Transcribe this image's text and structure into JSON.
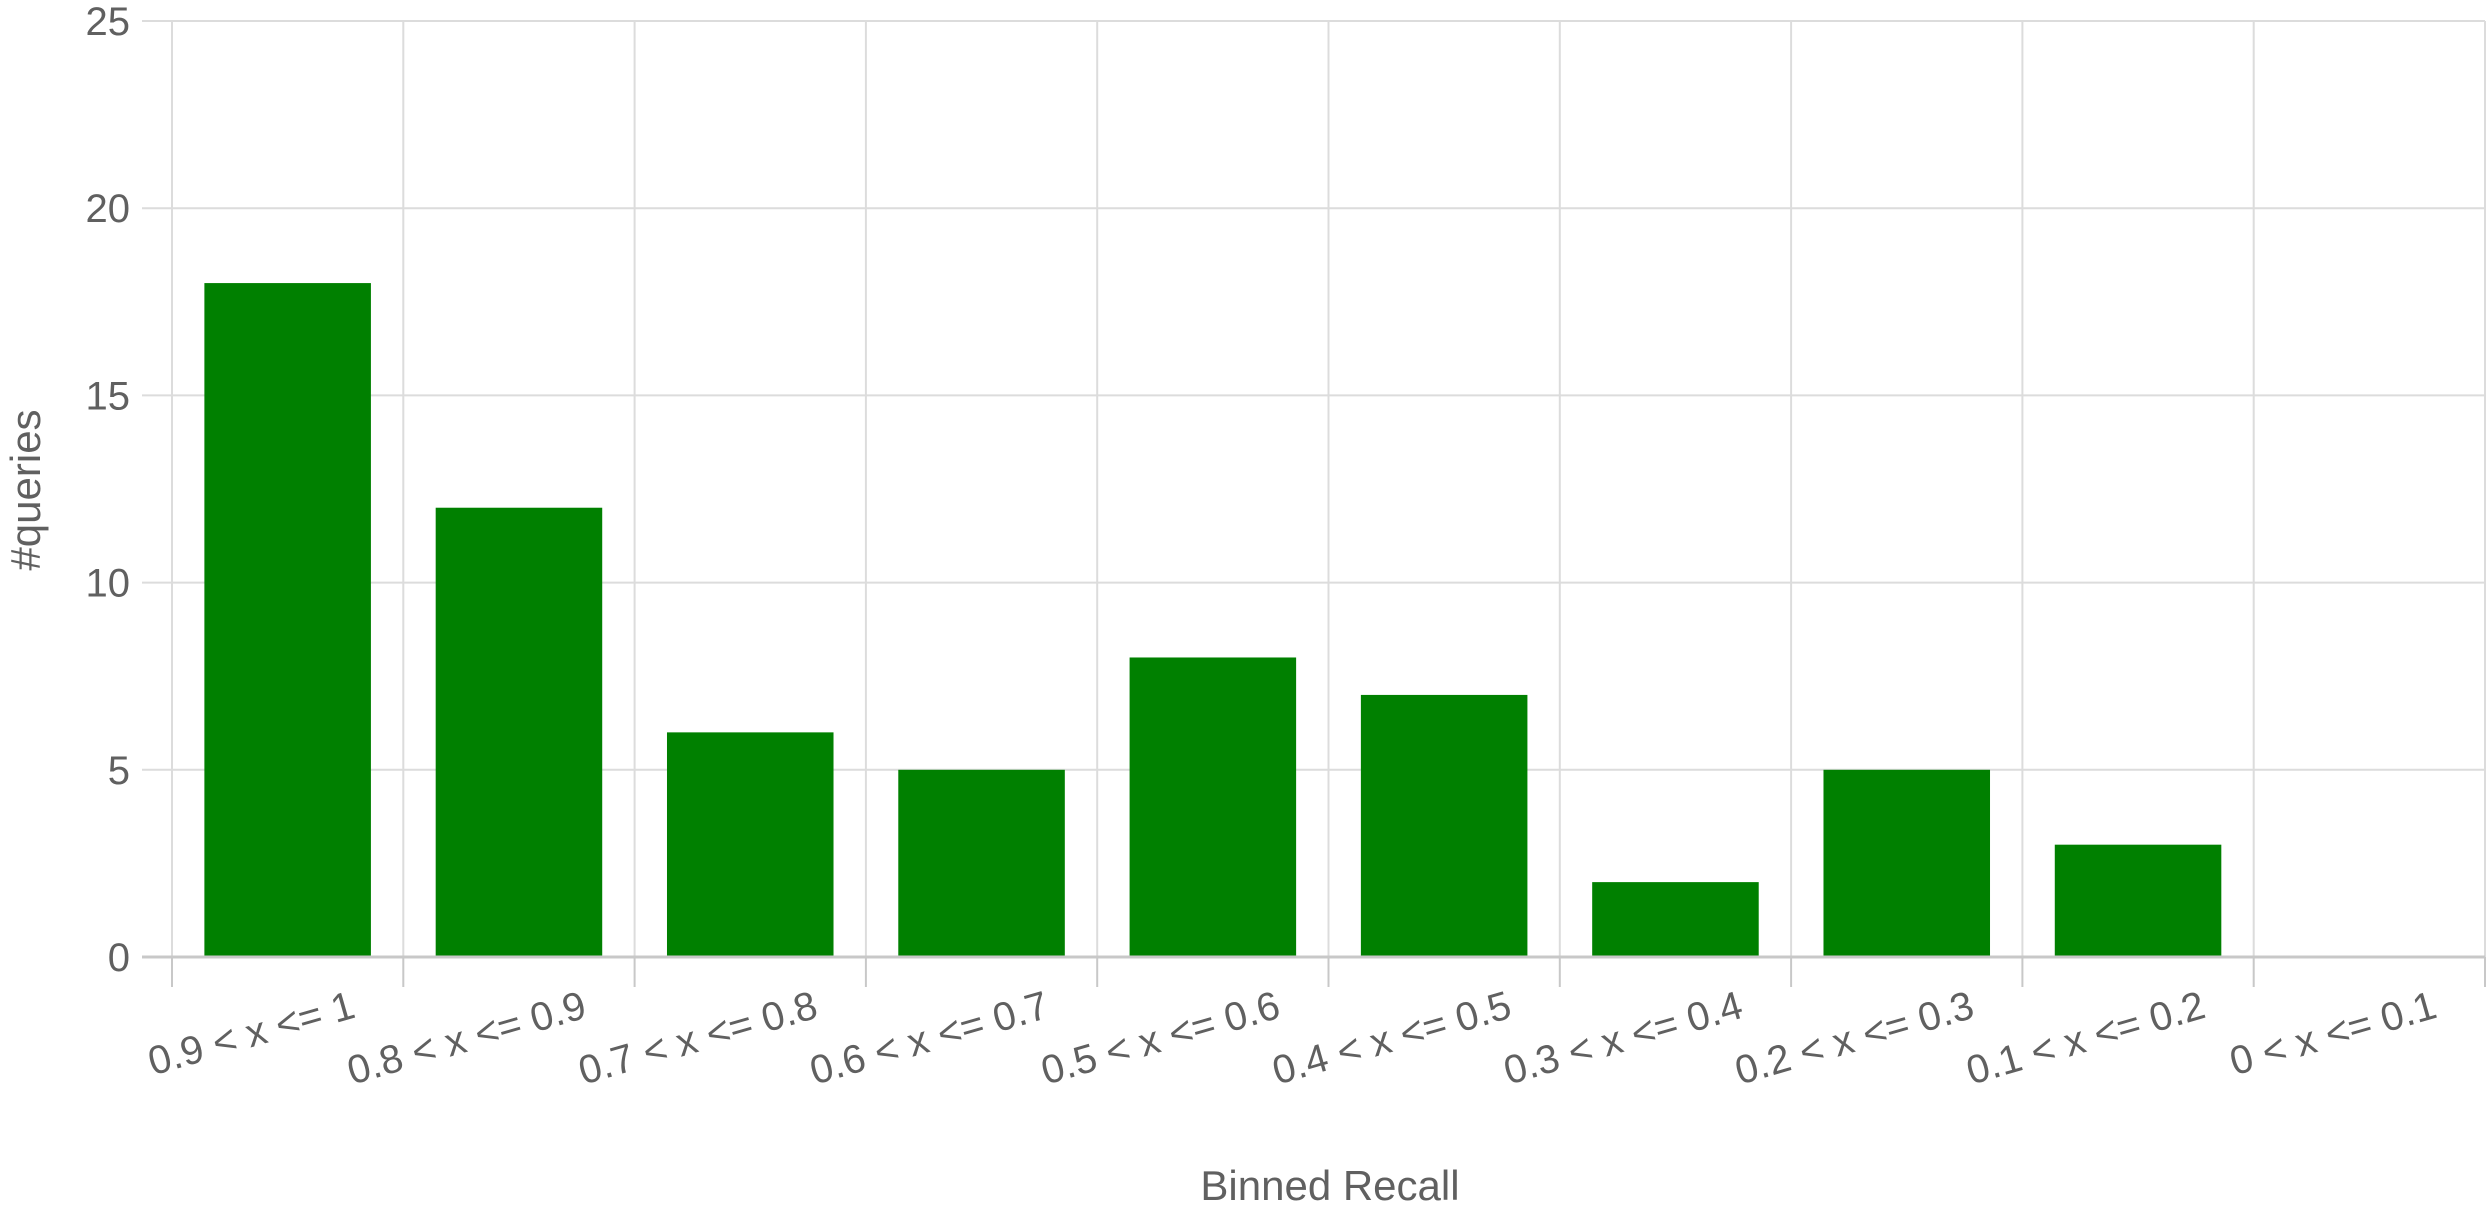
{
  "chart_data": {
    "type": "bar",
    "categories": [
      "0.9 < x <= 1",
      "0.8 < x <= 0.9",
      "0.7 < x <= 0.8",
      "0.6 < x <= 0.7",
      "0.5 < x <= 0.6",
      "0.4 < x <= 0.5",
      "0.3 < x <= 0.4",
      "0.2 < x <= 0.3",
      "0.1 < x <= 0.2",
      "0 < x <= 0.1"
    ],
    "values": [
      18,
      12,
      6,
      5,
      8,
      7,
      2,
      5,
      3,
      0
    ],
    "xlabel": "Binned Recall",
    "ylabel": "#queries",
    "ylim": [
      0,
      25
    ],
    "yticks": [
      0,
      5,
      10,
      15,
      20,
      25
    ],
    "grid": true,
    "bar_color": "#008000"
  }
}
